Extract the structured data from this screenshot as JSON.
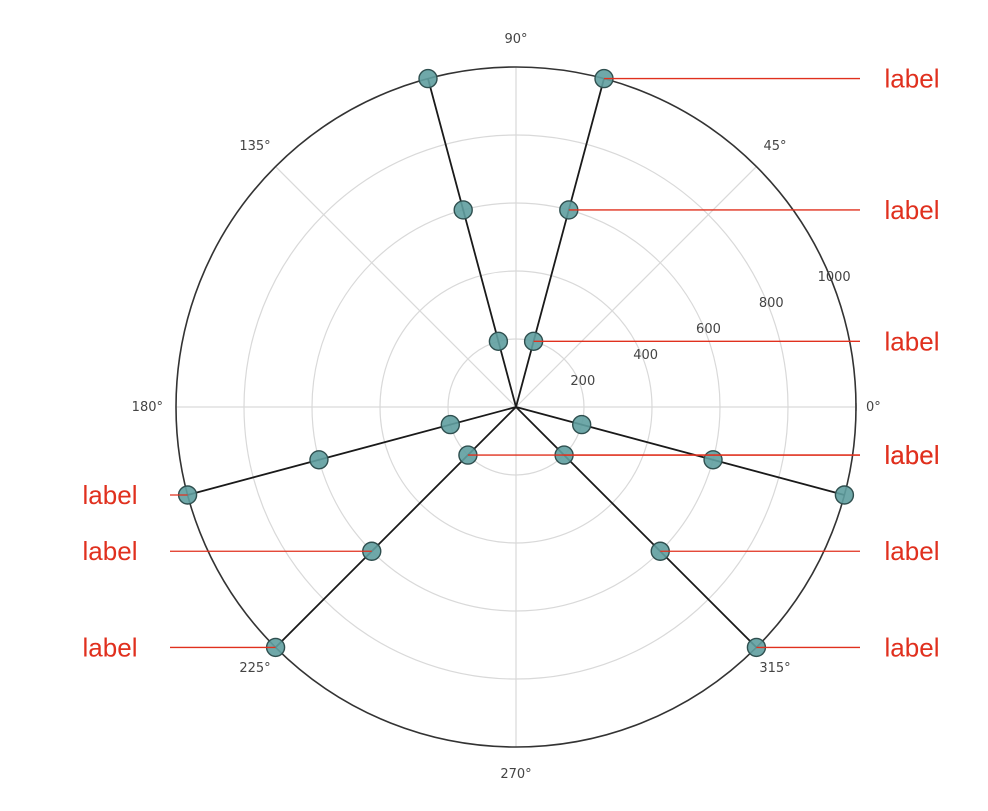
{
  "chart_data": {
    "type": "scatter",
    "projection": "polar",
    "r_range": [
      0,
      1000
    ],
    "r_ticks": [
      200,
      400,
      600,
      800,
      1000
    ],
    "r_tick_labels": [
      "200",
      "400",
      "600",
      "800",
      "1000"
    ],
    "theta_ticks": [
      0,
      45,
      90,
      135,
      180,
      225,
      270,
      315
    ],
    "theta_tick_labels": [
      "0°",
      "45°",
      "90°",
      "135°",
      "180°",
      "225°",
      "270°",
      "315°"
    ],
    "grid": true,
    "series": [
      {
        "theta": 75,
        "r": [
          200,
          600,
          1000
        ]
      },
      {
        "theta": 105,
        "r": [
          200,
          600,
          1000
        ]
      },
      {
        "theta": 195,
        "r": [
          200,
          600,
          1000
        ]
      },
      {
        "theta": 225,
        "r": [
          200,
          600,
          1000
        ]
      },
      {
        "theta": 315,
        "r": [
          200,
          600,
          1000
        ]
      },
      {
        "theta": 345,
        "r": [
          200,
          600,
          1000
        ]
      }
    ],
    "annotations": [
      {
        "text": "label",
        "theta": 75,
        "r": 1000,
        "side": "right"
      },
      {
        "text": "label",
        "theta": 75,
        "r": 600,
        "side": "right"
      },
      {
        "text": "label",
        "theta": 75,
        "r": 200,
        "side": "right"
      },
      {
        "text": "label",
        "theta": 195,
        "r": 1000,
        "side": "left"
      },
      {
        "text": "label",
        "theta": 225,
        "r": 200,
        "side": "right"
      },
      {
        "text": "label",
        "theta": 225,
        "r": 600,
        "side": "left"
      },
      {
        "text": "label",
        "theta": 225,
        "r": 1000,
        "side": "left"
      },
      {
        "text": "label",
        "theta": 315,
        "r": 200,
        "side": "right"
      },
      {
        "text": "label",
        "theta": 315,
        "r": 600,
        "side": "right"
      },
      {
        "text": "label",
        "theta": 315,
        "r": 1000,
        "side": "right"
      }
    ],
    "colors": {
      "marker_fill": "#5f9ea0",
      "marker_edge": "#2f4f4f",
      "line": "#1a1a1a",
      "grid": "#d9d9d9",
      "frame": "#333333",
      "annotation": "#e0301e"
    }
  }
}
